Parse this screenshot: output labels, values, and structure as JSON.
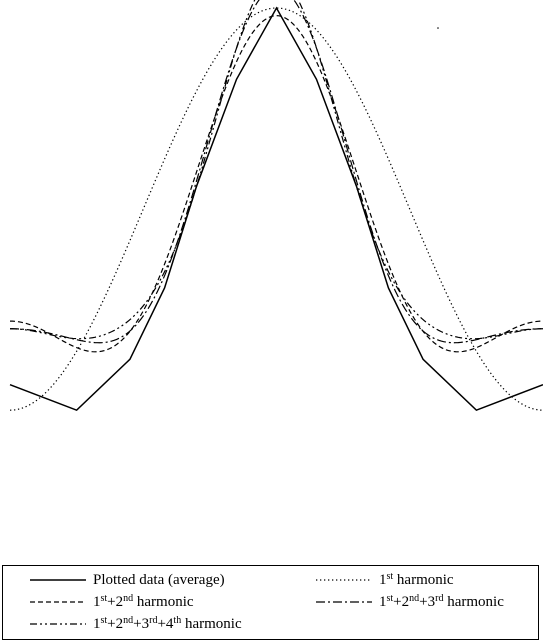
{
  "chart_data": {
    "type": "line",
    "title": "",
    "xlabel": "",
    "ylabel": "",
    "xlim": [
      -1,
      1
    ],
    "ylim": [
      -1.09,
      1.0
    ],
    "grid": false,
    "legend_placement": "bottom",
    "series": [
      {
        "name": "Plotted data (average)",
        "style": "solid",
        "x": [
          -1.0,
          -0.75,
          -0.55,
          -0.42,
          -0.3,
          -0.15,
          0.0,
          0.15,
          0.3,
          0.42,
          0.55,
          0.75,
          1.0
        ],
        "y": [
          -0.48,
          -0.58,
          -0.38,
          -0.1,
          0.3,
          0.72,
          1.0,
          0.72,
          0.3,
          -0.1,
          -0.38,
          -0.58,
          -0.48
        ]
      },
      {
        "name": "1st harmonic",
        "style": "dotted",
        "a": [
          0.21,
          0.79
        ]
      },
      {
        "name": "1st+2nd harmonic",
        "style": "dashed",
        "a": [
          0.09,
          0.6,
          0.28
        ]
      },
      {
        "name": "1st+2nd+3rd harmonic",
        "style": "dashdot",
        "a": [
          0.1,
          0.62,
          0.31,
          0.05
        ]
      },
      {
        "name": "1st+2nd+3rd+4th harmonic",
        "style": "dashdotdot",
        "a": [
          0.11,
          0.62,
          0.3,
          0.07,
          0.02
        ]
      }
    ],
    "legend": [
      {
        "base": "Plotted data (average)",
        "parts": []
      },
      {
        "base": "",
        "parts": [
          [
            "1",
            "st"
          ]
        ],
        "suffix": " harmonic"
      },
      {
        "base": "",
        "parts": [
          [
            "1",
            "st"
          ],
          [
            "+2",
            "nd"
          ]
        ],
        "suffix": " harmonic"
      },
      {
        "base": "",
        "parts": [
          [
            "1",
            "st"
          ],
          [
            "+2",
            "nd"
          ],
          [
            "+3",
            "rd"
          ]
        ],
        "suffix": " harmonic"
      },
      {
        "base": "",
        "parts": [
          [
            "1",
            "st"
          ],
          [
            "+2",
            "nd"
          ],
          [
            "+3",
            "rd"
          ],
          [
            "+4",
            "th"
          ]
        ],
        "suffix": " harmonic"
      }
    ]
  }
}
